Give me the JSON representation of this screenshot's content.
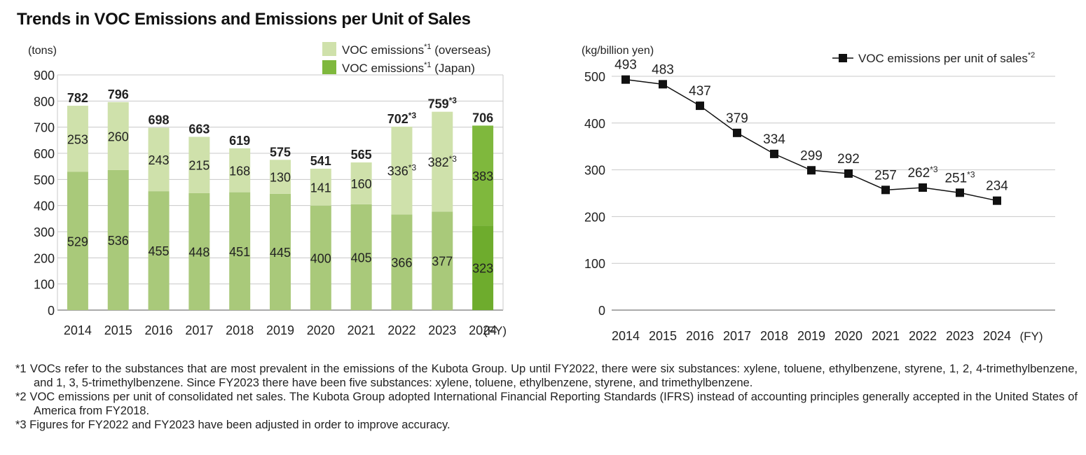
{
  "title": "Trends in VOC Emissions and Emissions per Unit of Sales",
  "chart_data": [
    {
      "type": "bar",
      "stacked": true,
      "title": "",
      "ylabel": "(tons)",
      "xlabel": "(FY)",
      "ylim": [
        0,
        900
      ],
      "yticks": [
        0,
        100,
        200,
        300,
        400,
        500,
        600,
        700,
        800,
        900
      ],
      "grid": true,
      "legend_position": "top-right",
      "categories": [
        "2014",
        "2015",
        "2016",
        "2017",
        "2018",
        "2019",
        "2020",
        "2021",
        "2022",
        "2023",
        "2024"
      ],
      "series": [
        {
          "name": "VOC emissions*1 (Japan)",
          "legend_text": "VOC emissions",
          "legend_sup": "*1",
          "legend_suffix": " (Japan)",
          "values": [
            529,
            536,
            455,
            448,
            451,
            445,
            400,
            405,
            366,
            377,
            323
          ],
          "labels": [
            "529",
            "536",
            "455",
            "448",
            "451",
            "445",
            "400",
            "405",
            "366",
            "377",
            "323"
          ],
          "color": "#a9c97a",
          "last_color": "#6eac2d"
        },
        {
          "name": "VOC emissions*1 (overseas)",
          "legend_text": "VOC emissions",
          "legend_sup": "*1",
          "legend_suffix": " (overseas)",
          "values": [
            253,
            260,
            243,
            215,
            168,
            130,
            141,
            160,
            336,
            382,
            383
          ],
          "labels": [
            "253",
            "260",
            "243",
            "215",
            "168",
            "130",
            "141",
            "160",
            "336*3",
            "382*3",
            "383"
          ],
          "color": "#cfe1ab",
          "last_color": "#7fb83d"
        }
      ],
      "totals": [
        782,
        796,
        698,
        663,
        619,
        575,
        541,
        565,
        702,
        759,
        706
      ],
      "total_labels": [
        "782",
        "796",
        "698",
        "663",
        "619",
        "575",
        "541",
        "565",
        "702*3",
        "759*3",
        "706"
      ]
    },
    {
      "type": "line",
      "title": "",
      "ylabel": "(kg/billion yen)",
      "xlabel": "(FY)",
      "ylim": [
        0,
        500
      ],
      "yticks": [
        0,
        100,
        200,
        300,
        400,
        500
      ],
      "grid": true,
      "legend_position": "top-right",
      "categories": [
        "2014",
        "2015",
        "2016",
        "2017",
        "2018",
        "2019",
        "2020",
        "2021",
        "2022",
        "2023",
        "2024"
      ],
      "series": [
        {
          "name": "VOC emissions per unit of sales*2",
          "legend_text": "VOC emissions per unit of sales",
          "legend_sup": "*2",
          "values": [
            493,
            483,
            437,
            379,
            334,
            299,
            292,
            257,
            262,
            251,
            234
          ],
          "labels": [
            "493",
            "483",
            "437",
            "379",
            "334",
            "299",
            "292",
            "257",
            "262*3",
            "251*3",
            "234"
          ],
          "color": "#111111",
          "marker": "square"
        }
      ]
    }
  ],
  "footnotes": [
    "*1 VOCs refer to the substances that are most prevalent in the emissions of the Kubota Group. Up until FY2022, there were six substances: xylene, toluene, ethylbenzene, styrene, 1, 2, 4-trimethylbenzene, and 1, 3, 5-trimethylbenzene. Since FY2023 there have been five substances: xylene, toluene, ethylbenzene, styrene, and trimethylbenzene.",
    "*2 VOC emissions per unit of consolidated net sales. The Kubota Group adopted International Financial Reporting Standards (IFRS) instead of accounting principles generally accepted in the United States of America from FY2018.",
    "*3 Figures for FY2022 and FY2023 have been adjusted in order to improve accuracy."
  ]
}
